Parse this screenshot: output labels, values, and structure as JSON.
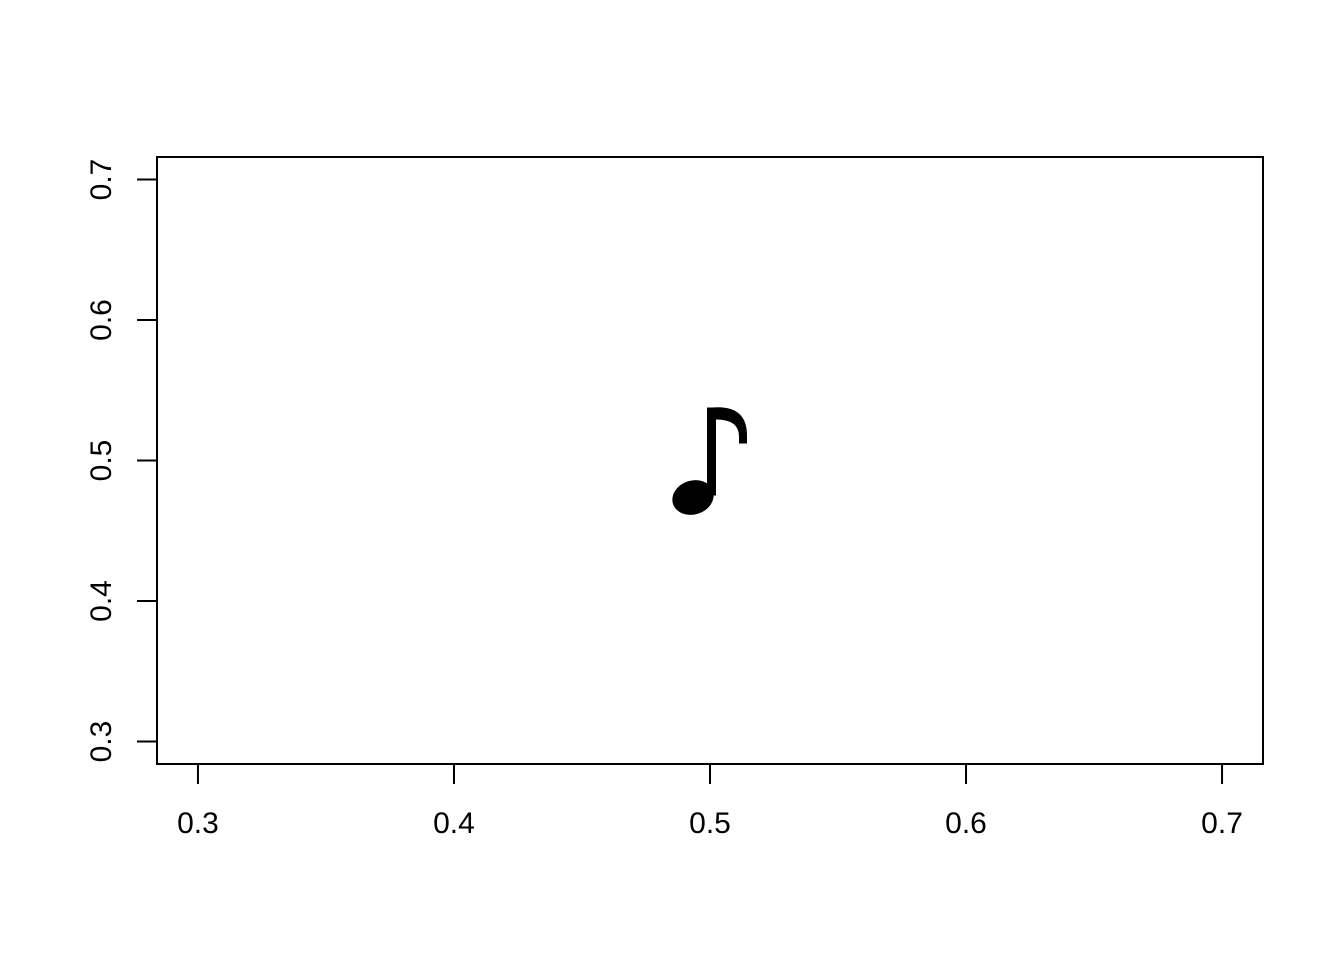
{
  "chart_data": {
    "type": "scatter",
    "title": "",
    "xlabel": "",
    "ylabel": "",
    "xlim": [
      0.284,
      0.716
    ],
    "ylim": [
      0.284,
      0.716
    ],
    "x_ticks": [
      "0.3",
      "0.4",
      "0.5",
      "0.6",
      "0.7"
    ],
    "y_ticks": [
      "0.3",
      "0.4",
      "0.5",
      "0.6",
      "0.7"
    ],
    "grid": false,
    "legend": "none",
    "points": [
      {
        "x": 0.5,
        "y": 0.5,
        "marker": "music-note-icon"
      }
    ],
    "colors": {
      "axis": "#000000",
      "marker": "#000000",
      "background": "#ffffff"
    }
  }
}
